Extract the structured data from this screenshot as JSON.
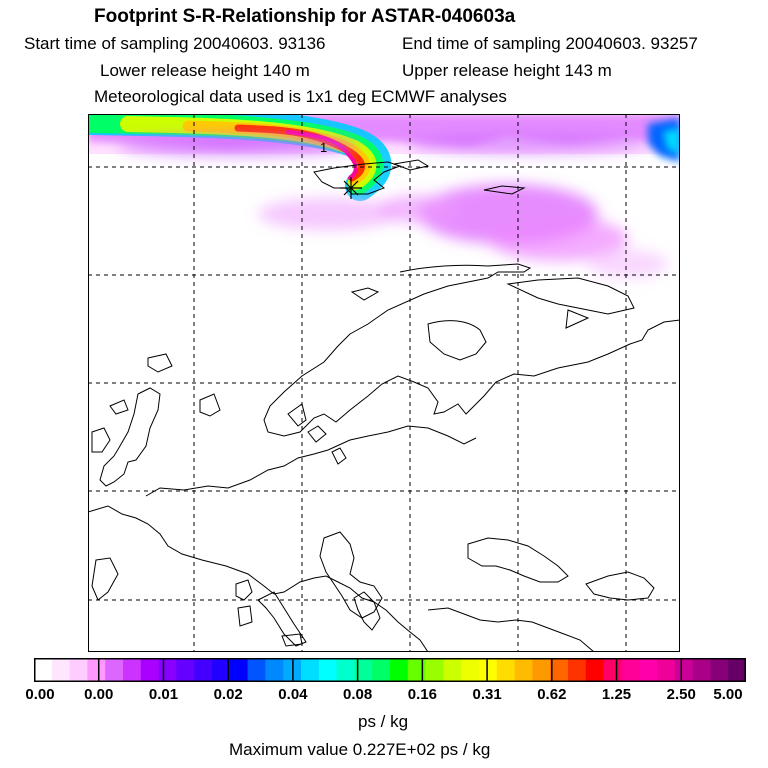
{
  "header": {
    "title": "Footprint S-R-Relationship for ASTAR-040603a",
    "start_time": "Start time of sampling 20040603. 93136",
    "end_time": "End time of sampling 20040603. 93257",
    "lower_height": "Lower release height  140 m",
    "upper_height": "Upper release height  143 m",
    "met_data": "Meteorological data used is 1x1 deg ECMWF analyses"
  },
  "map": {
    "marker_label": "1"
  },
  "legend": {
    "colors": [
      "#ffffff",
      "#ffe6ff",
      "#ffccff",
      "#ff99ff",
      "#dd66ff",
      "#cc33ff",
      "#aa00ff",
      "#8800ff",
      "#6600ff",
      "#4400ff",
      "#2200ff",
      "#0000ff",
      "#0055ff",
      "#0088ff",
      "#00aaff",
      "#00ddff",
      "#00ffff",
      "#00ffcc",
      "#00ff99",
      "#00ff66",
      "#00ff00",
      "#66ff00",
      "#99ff00",
      "#ccff00",
      "#eeff00",
      "#ffff00",
      "#ffdd00",
      "#ffbb00",
      "#ff9900",
      "#ff6600",
      "#ff3300",
      "#ff0000",
      "#ff0066",
      "#ff0099",
      "#ff00aa",
      "#ee0099",
      "#cc0099",
      "#aa0088",
      "#880077",
      "#660066"
    ],
    "tick_labels": [
      "0.00",
      "0.00",
      "0.01",
      "0.02",
      "0.04",
      "0.08",
      "0.16",
      "0.31",
      "0.62",
      "1.25",
      "2.50",
      "5.00"
    ],
    "units": "ps / kg",
    "max_value": "Maximum value  0.227E+02 ps / kg"
  }
}
